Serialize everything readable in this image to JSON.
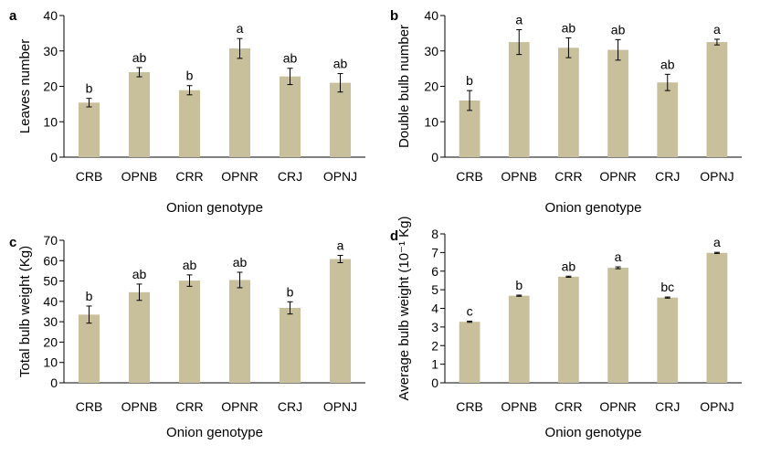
{
  "figure": {
    "panels": [
      "a",
      "b",
      "c",
      "d"
    ]
  },
  "chart_data": [
    {
      "type": "bar",
      "panel": "a",
      "categories": [
        "CRB",
        "OPNB",
        "CRR",
        "OPNR",
        "CRJ",
        "OPNJ"
      ],
      "values": [
        15.4,
        24.0,
        18.9,
        30.7,
        22.8,
        21.0
      ],
      "errors": [
        1.2,
        1.3,
        1.3,
        2.8,
        2.3,
        2.6
      ],
      "letters": [
        "b",
        "ab",
        "b",
        "a",
        "ab",
        "ab"
      ],
      "xlabel": "Onion genotype",
      "ylabel": "Leaves number",
      "ylim": [
        0,
        40
      ],
      "yticks": [
        0,
        10,
        20,
        30,
        40
      ],
      "bar_color": "#c8c09a"
    },
    {
      "type": "bar",
      "panel": "b",
      "categories": [
        "CRB",
        "OPNB",
        "CRR",
        "OPNR",
        "CRJ",
        "OPNJ"
      ],
      "values": [
        16.0,
        32.5,
        30.9,
        30.3,
        21.1,
        32.5
      ],
      "errors": [
        2.8,
        3.5,
        2.8,
        2.9,
        2.3,
        0.8
      ],
      "letters": [
        "b",
        "a",
        "ab",
        "ab",
        "ab",
        "a"
      ],
      "xlabel": "Onion genotype",
      "ylabel": "Double bulb number",
      "ylim": [
        0,
        40
      ],
      "yticks": [
        0,
        10,
        20,
        30,
        40
      ],
      "bar_color": "#c8c09a"
    },
    {
      "type": "bar",
      "panel": "c",
      "categories": [
        "CRB",
        "OPNB",
        "CRR",
        "OPNR",
        "CRJ",
        "OPNJ"
      ],
      "values": [
        33.5,
        44.5,
        50.2,
        50.5,
        36.8,
        60.8
      ],
      "errors": [
        4.2,
        4.0,
        2.8,
        3.8,
        3.0,
        1.8
      ],
      "letters": [
        "b",
        "ab",
        "ab",
        "ab",
        "b",
        "a"
      ],
      "xlabel": "Onion genotype",
      "ylabel": "Total bulb weight (Kg)",
      "ylim": [
        0,
        70
      ],
      "yticks": [
        0,
        10,
        20,
        30,
        40,
        50,
        60,
        70
      ],
      "bar_color": "#c8c09a"
    },
    {
      "type": "bar",
      "panel": "d",
      "categories": [
        "CRB",
        "OPNB",
        "CRR",
        "OPNR",
        "CRJ",
        "OPNJ"
      ],
      "values": [
        3.28,
        4.68,
        5.7,
        6.18,
        4.58,
        6.98
      ],
      "errors": [
        0.03,
        0.03,
        0.03,
        0.05,
        0.03,
        0.03
      ],
      "letters": [
        "c",
        "b",
        "ab",
        "a",
        "bc",
        "a"
      ],
      "xlabel": "Onion genotype",
      "ylabel": "Average bulb weight (10⁻¹ Kg)",
      "ylim": [
        0,
        8
      ],
      "yticks": [
        0,
        1,
        2,
        3,
        4,
        5,
        6,
        7,
        8
      ],
      "bar_color": "#c8c09a"
    }
  ]
}
